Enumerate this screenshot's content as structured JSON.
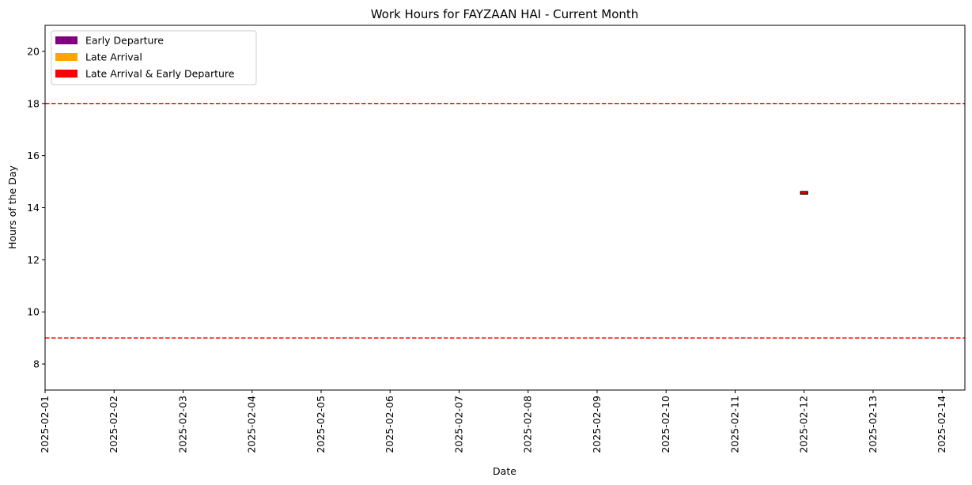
{
  "chart_data": {
    "type": "bar",
    "title": "Work Hours for FAYZAAN HAI - Current Month",
    "xlabel": "Date",
    "ylabel": "Hours of the Day",
    "x_ticks": [
      "2025-02-01",
      "2025-02-02",
      "2025-02-03",
      "2025-02-04",
      "2025-02-05",
      "2025-02-06",
      "2025-02-07",
      "2025-02-08",
      "2025-02-09",
      "2025-02-10",
      "2025-02-11",
      "2025-02-12",
      "2025-02-13",
      "2025-02-14"
    ],
    "y_ticks": [
      8,
      10,
      12,
      14,
      16,
      18,
      20
    ],
    "xlim": [
      "2025-02-01",
      "2025-02-14.33"
    ],
    "ylim": [
      7,
      21
    ],
    "grid": false,
    "legend_position": "top-left",
    "legend": [
      {
        "label": "Early Departure",
        "color": "#800080"
      },
      {
        "label": "Late Arrival",
        "color": "#ffa500"
      },
      {
        "label": "Late Arrival & Early Departure",
        "color": "#ff0000"
      }
    ],
    "reference_lines": [
      {
        "y": 18,
        "color": "#ff0000",
        "style": "dashed"
      },
      {
        "y": 9,
        "color": "#ff0000",
        "style": "dashed"
      }
    ],
    "bars": [
      {
        "date": "2025-02-12",
        "start_hour": 14.52,
        "end_hour": 14.62,
        "category": "Late Arrival & Early Departure",
        "color": "#ff0000"
      }
    ]
  }
}
